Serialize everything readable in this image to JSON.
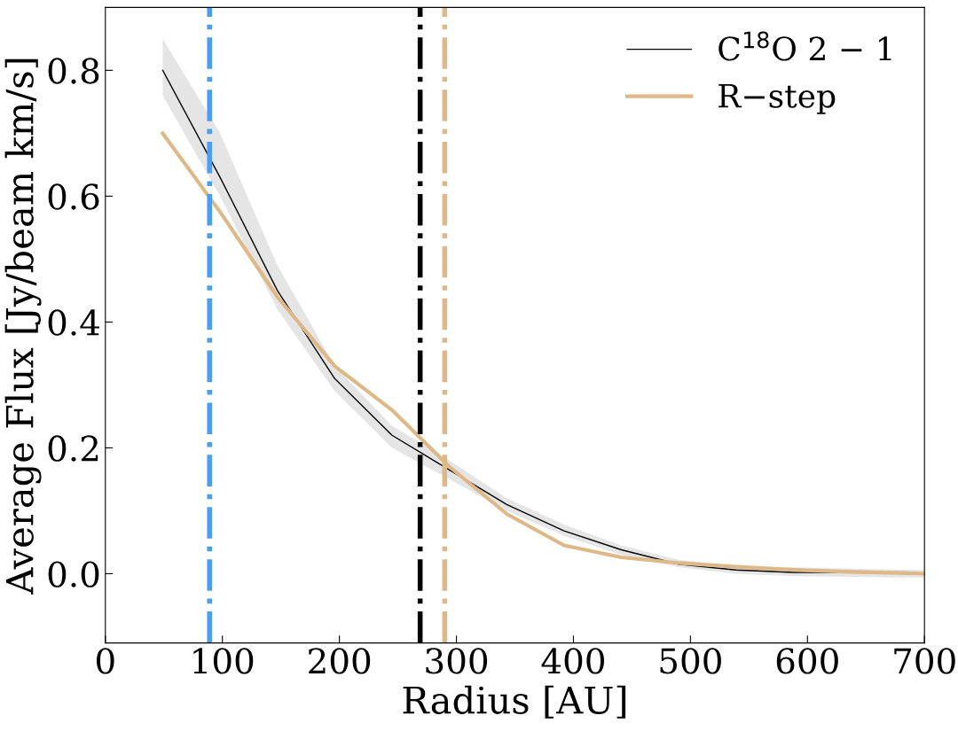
{
  "chart_data": {
    "type": "line",
    "xlabel": "Radius [AU]",
    "ylabel": "Average Flux [Jy/beam km/s]",
    "xlim": [
      0,
      700
    ],
    "ylim": [
      -0.11,
      0.9
    ],
    "xticks": [
      0,
      100,
      200,
      300,
      400,
      500,
      600,
      700
    ],
    "yticks": [
      {
        "value": 0,
        "label": "0.0"
      },
      0.2,
      0.4,
      0.6,
      0.8
    ],
    "x": [
      49,
      98,
      147,
      196,
      245,
      294,
      343,
      392,
      441,
      490,
      539,
      588,
      637,
      686,
      700
    ],
    "series": [
      {
        "name": "C$^{18}$O 2 − 1",
        "color": "#000000",
        "values": [
          0.8,
          0.63,
          0.45,
          0.31,
          0.22,
          0.165,
          0.11,
          0.068,
          0.038,
          0.015,
          0.006,
          0.002,
          0.002,
          0.0,
          0.0
        ],
        "lower": [
          0.76,
          0.6,
          0.42,
          0.29,
          0.2,
          0.15,
          0.1,
          0.06,
          0.03,
          0.01,
          0.0,
          -0.004,
          -0.005,
          -0.006,
          -0.006
        ],
        "upper": [
          0.85,
          0.7,
          0.49,
          0.33,
          0.235,
          0.18,
          0.12,
          0.078,
          0.045,
          0.022,
          0.012,
          0.01,
          0.008,
          0.006,
          0.006
        ]
      },
      {
        "name": "R−step",
        "color": "#deb887",
        "values": [
          0.7,
          0.575,
          0.44,
          0.33,
          0.26,
          0.17,
          0.095,
          0.045,
          0.026,
          0.017,
          0.011,
          0.006,
          0.003,
          0.001,
          0.0
        ]
      }
    ],
    "ref_lines": [
      {
        "axis": "x",
        "value": 89,
        "color": "#4a9ff5",
        "line_style": "dashdot"
      },
      {
        "axis": "x",
        "value": 269,
        "color": "#000000",
        "line_style": "dashdot"
      },
      {
        "axis": "x",
        "value": 290,
        "color": "#deb887",
        "line_style": "dashdot"
      }
    ],
    "legend": "top right",
    "grid": false
  }
}
